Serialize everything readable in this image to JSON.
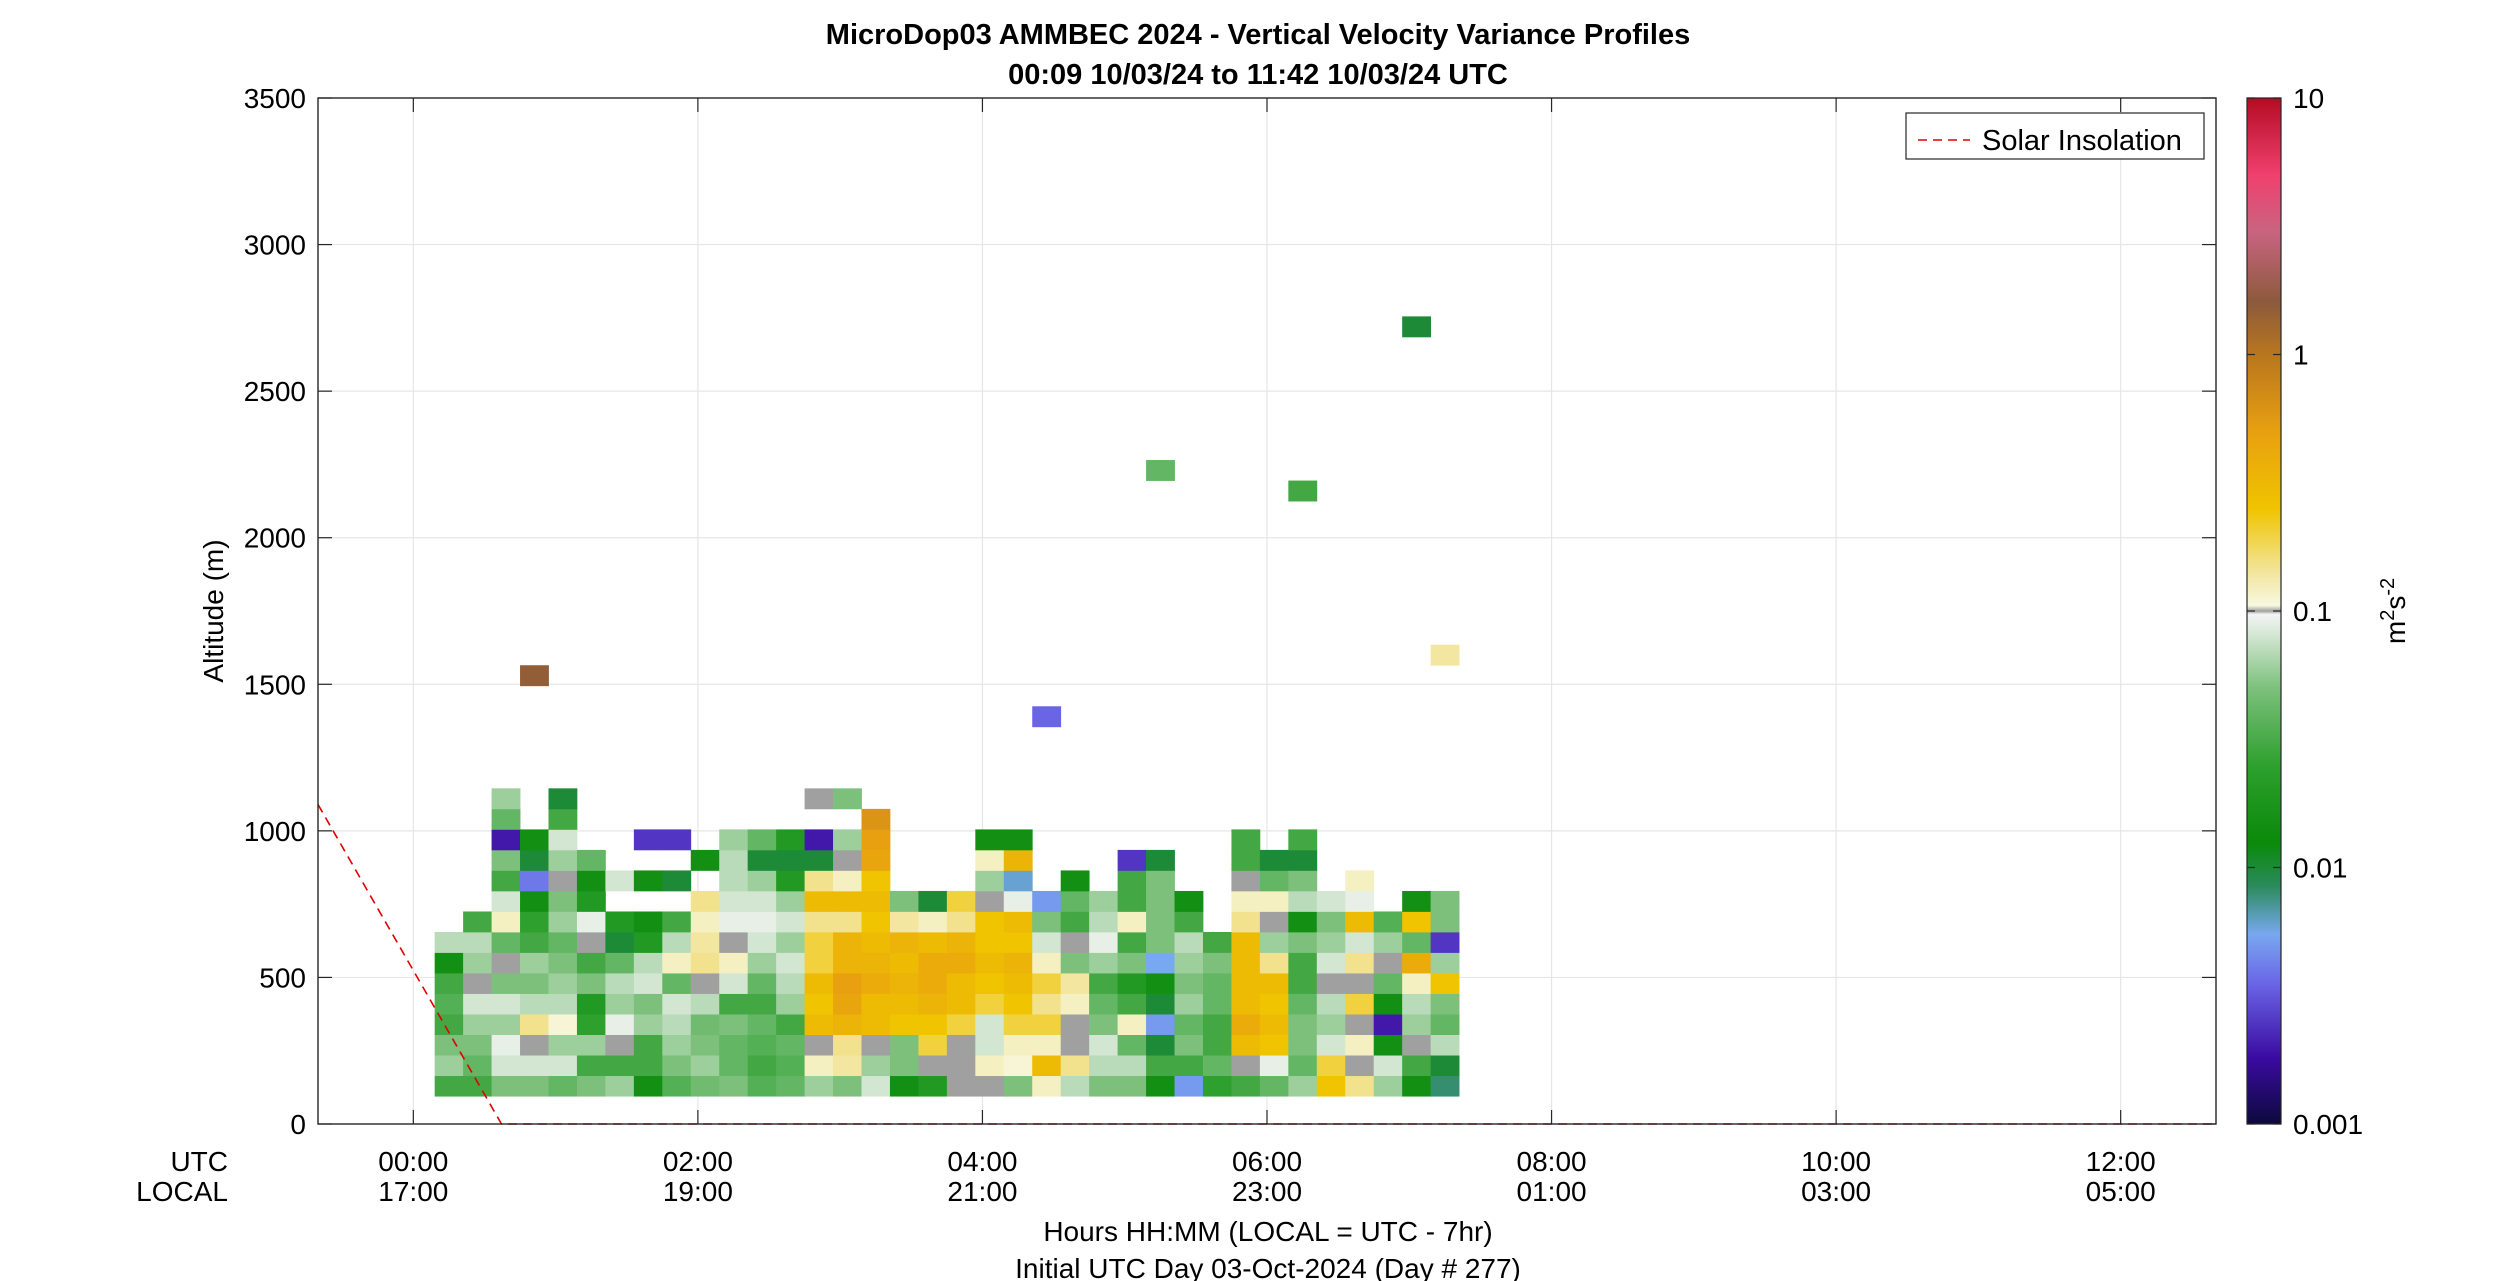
{
  "chart_data": {
    "type": "heatmap",
    "title": "MicroDop03 AMMBEC 2024 - Vertical Velocity Variance Profiles",
    "subtitle": "00:09 10/03/24 to 11:42 10/03/24  UTC",
    "ylabel": "Altitude (m)",
    "xlabel": "Hours HH:MM  (LOCAL = UTC - 7hr)",
    "xlabel2": "Initial UTC Day 03-Oct-2024 (Day # 277)",
    "row_label_utc": "UTC",
    "row_label_local": "LOCAL",
    "ylim": [
      0,
      3500
    ],
    "xlim_hours": [
      -0.67,
      12.67
    ],
    "grid": true,
    "y_ticks": [
      {
        "value": 0,
        "label": "0"
      },
      {
        "value": 500,
        "label": "500"
      },
      {
        "value": 1000,
        "label": "1000"
      },
      {
        "value": 1500,
        "label": "1500"
      },
      {
        "value": 2000,
        "label": "2000"
      },
      {
        "value": 2500,
        "label": "2500"
      },
      {
        "value": 3000,
        "label": "3000"
      },
      {
        "value": 3500,
        "label": "3500"
      }
    ],
    "x_ticks": [
      {
        "hour": 0,
        "utc": "00:00",
        "local": "17:00"
      },
      {
        "hour": 2,
        "utc": "02:00",
        "local": "19:00"
      },
      {
        "hour": 4,
        "utc": "04:00",
        "local": "21:00"
      },
      {
        "hour": 6,
        "utc": "06:00",
        "local": "23:00"
      },
      {
        "hour": 8,
        "utc": "08:00",
        "local": "01:00"
      },
      {
        "hour": 10,
        "utc": "10:00",
        "local": "03:00"
      },
      {
        "hour": 12,
        "utc": "12:00",
        "local": "05:00"
      }
    ],
    "colorbar": {
      "scale": "log",
      "range": [
        0.001,
        10
      ],
      "label_base": "m",
      "label_exp1": "2",
      "label_mid": "s",
      "label_exp2": "-2",
      "ticks": [
        {
          "value": 0.001,
          "label": "0.001"
        },
        {
          "value": 0.01,
          "label": "0.01"
        },
        {
          "value": 0.1,
          "label": "0.1"
        },
        {
          "value": 1,
          "label": "1"
        },
        {
          "value": 10,
          "label": "10"
        }
      ],
      "stops": [
        {
          "v": 0.001,
          "color": "#0c0a3c"
        },
        {
          "v": 0.0018,
          "color": "#3a0aa0"
        },
        {
          "v": 0.0035,
          "color": "#6a64e6"
        },
        {
          "v": 0.0055,
          "color": "#78a8f0"
        },
        {
          "v": 0.0085,
          "color": "#2a8a5a"
        },
        {
          "v": 0.0125,
          "color": "#0a8a0a"
        },
        {
          "v": 0.025,
          "color": "#2ea02e"
        },
        {
          "v": 0.05,
          "color": "#7cc07c"
        },
        {
          "v": 0.08,
          "color": "#d2e6d2"
        },
        {
          "v": 0.097,
          "color": "#f4f4f4"
        },
        {
          "v": 0.1,
          "color": "#a0a0a0"
        },
        {
          "v": 0.105,
          "color": "#f8f8e0"
        },
        {
          "v": 0.14,
          "color": "#f2e6a0"
        },
        {
          "v": 0.25,
          "color": "#f0c400"
        },
        {
          "v": 0.5,
          "color": "#e8a010"
        },
        {
          "v": 1.0,
          "color": "#b8761e"
        },
        {
          "v": 1.6,
          "color": "#8c5a3c"
        },
        {
          "v": 3.0,
          "color": "#c86480"
        },
        {
          "v": 5.0,
          "color": "#f0406e"
        },
        {
          "v": 10,
          "color": "#b40c24"
        }
      ]
    },
    "legend": {
      "label": "Solar Insolation",
      "color": "#e00000",
      "position": "top-right"
    },
    "solar_insolation": [
      {
        "hour": -0.67,
        "alt": 1090
      },
      {
        "hour": 0.62,
        "alt": 0
      },
      {
        "hour": 12.67,
        "alt": 0
      }
    ],
    "bins": {
      "x_start": 0.15,
      "x_step": 0.2,
      "alt_start": 95,
      "alt_step": 70,
      "note_values": "m2s-2; null = no data; each column lists values from lowest altitude bin upward"
    },
    "columns": [
      [
        0.03,
        0.06,
        0.05,
        0.03,
        0.035,
        0.03,
        0.015,
        0.07
      ],
      [
        0.03,
        0.04,
        0.05,
        0.06,
        0.08,
        0.1,
        0.06,
        0.07,
        0.03
      ],
      [
        0.05,
        0.08,
        0.09,
        0.06,
        0.08,
        0.05,
        0.1,
        0.04,
        0.12,
        0.08,
        0.03,
        0.05,
        0.002,
        0.04,
        0.06
      ],
      [
        0.05,
        0.08,
        0.1,
        0.15,
        0.07,
        0.05,
        0.06,
        0.03,
        0.025,
        0.015,
        0.004,
        0.01,
        0.015,
        null,
        null,
        null,
        null,
        null,
        null,
        null,
        1.5
      ],
      [
        0.04,
        0.08,
        0.06,
        0.11,
        0.07,
        0.06,
        0.05,
        0.04,
        0.06,
        0.05,
        0.1,
        0.06,
        0.08,
        0.03,
        0.01
      ],
      [
        0.05,
        0.03,
        0.06,
        0.025,
        0.02,
        0.05,
        0.03,
        0.1,
        0.09,
        0.02,
        0.015,
        0.04
      ],
      [
        0.06,
        0.03,
        0.1,
        0.09,
        0.06,
        0.07,
        0.04,
        0.01,
        0.02,
        null,
        0.08
      ],
      [
        0.015,
        0.03,
        0.03,
        0.06,
        0.05,
        0.08,
        0.07,
        0.02,
        0.015,
        null,
        0.015,
        null,
        0.0025
      ],
      [
        0.035,
        0.05,
        0.06,
        0.07,
        0.08,
        0.04,
        0.12,
        0.07,
        0.03,
        null,
        0.01,
        null,
        0.0025
      ],
      [
        0.045,
        0.06,
        0.05,
        0.045,
        0.07,
        0.1,
        0.15,
        0.14,
        0.12,
        0.15,
        null,
        0.015
      ],
      [
        0.05,
        0.04,
        0.04,
        0.05,
        0.03,
        0.08,
        0.12,
        0.1,
        0.09,
        0.08,
        0.07,
        0.07,
        0.06
      ],
      [
        0.035,
        0.03,
        0.035,
        0.04,
        0.03,
        0.04,
        0.06,
        0.08,
        0.09,
        0.08,
        0.06,
        0.01,
        0.04
      ],
      [
        0.04,
        0.035,
        0.04,
        0.03,
        0.06,
        0.07,
        0.08,
        0.06,
        0.08,
        0.06,
        0.02,
        0.01,
        0.02
      ],
      [
        0.06,
        0.12,
        0.1,
        0.3,
        0.25,
        0.3,
        0.2,
        0.2,
        0.15,
        0.3,
        0.15,
        0.01,
        0.002,
        null,
        0.1
      ],
      [
        0.05,
        0.14,
        0.15,
        0.35,
        0.45,
        0.5,
        0.35,
        0.35,
        0.15,
        0.3,
        0.12,
        0.1,
        0.06,
        null,
        0.05
      ],
      [
        0.08,
        0.06,
        0.1,
        0.3,
        0.3,
        0.4,
        0.35,
        0.3,
        0.25,
        0.3,
        0.25,
        0.45,
        0.5,
        0.6
      ],
      [
        0.015,
        0.05,
        0.05,
        0.25,
        0.3,
        0.35,
        0.3,
        0.35,
        0.14,
        0.05
      ],
      [
        0.02,
        0.1,
        0.2,
        0.25,
        0.35,
        0.4,
        0.4,
        0.3,
        0.12,
        0.01
      ],
      [
        0.1,
        0.1,
        0.1,
        0.2,
        0.3,
        0.3,
        0.4,
        0.35,
        0.15,
        0.2
      ],
      [
        0.1,
        0.12,
        0.08,
        0.08,
        0.2,
        0.25,
        0.3,
        0.25,
        0.25,
        0.1,
        0.06,
        0.12,
        0.015
      ],
      [
        0.05,
        0.11,
        0.12,
        0.2,
        0.25,
        0.3,
        0.35,
        0.25,
        0.3,
        0.09,
        0.006,
        0.35,
        0.015
      ],
      [
        0.12,
        0.3,
        0.12,
        0.2,
        0.15,
        0.2,
        0.12,
        0.08,
        0.05,
        0.005,
        null,
        null,
        null,
        null,
        null,
        null,
        null,
        null,
        0.0035
      ],
      [
        0.07,
        0.15,
        0.1,
        0.1,
        0.12,
        0.14,
        0.05,
        0.1,
        0.03,
        0.04,
        0.015
      ],
      [
        0.05,
        0.07,
        0.08,
        0.05,
        0.04,
        0.03,
        0.06,
        0.09,
        0.07,
        0.06
      ],
      [
        0.05,
        0.07,
        0.04,
        0.12,
        0.03,
        0.02,
        0.05,
        0.03,
        0.12,
        0.03,
        0.03,
        0.0025
      ],
      [
        0.015,
        0.03,
        0.01,
        0.005,
        0.01,
        0.015,
        0.0055,
        0.05,
        0.05,
        0.05,
        0.05,
        0.01,
        null,
        null,
        null,
        null,
        null,
        null,
        null,
        null,
        null,
        null,
        null,
        null,
        null,
        null,
        null,
        null,
        null,
        null,
        0.04
      ],
      [
        0.005,
        0.03,
        0.05,
        0.04,
        0.06,
        0.05,
        0.06,
        0.07,
        0.03,
        0.015
      ],
      [
        0.025,
        0.04,
        0.03,
        0.03,
        0.04,
        0.04,
        0.05,
        0.03
      ],
      [
        0.03,
        0.1,
        0.3,
        0.4,
        0.3,
        0.3,
        0.3,
        0.3,
        0.15,
        0.12,
        0.1,
        0.03,
        0.03
      ],
      [
        0.04,
        0.09,
        0.25,
        0.3,
        0.25,
        0.3,
        0.15,
        0.06,
        0.1,
        0.12,
        0.04,
        0.01
      ],
      [
        0.06,
        0.04,
        0.05,
        0.05,
        0.04,
        0.03,
        0.03,
        0.05,
        0.015,
        0.07,
        0.05,
        0.01,
        0.03,
        null,
        null,
        null,
        null,
        null,
        null,
        null,
        null,
        null,
        null,
        null,
        null,
        null,
        null,
        null,
        null,
        0.03
      ],
      [
        0.25,
        0.2,
        0.08,
        0.06,
        0.07,
        0.1,
        0.08,
        0.06,
        0.05,
        0.08
      ],
      [
        0.15,
        0.1,
        0.12,
        0.1,
        0.2,
        0.1,
        0.15,
        0.08,
        0.3,
        0.09,
        0.12
      ],
      [
        0.06,
        0.08,
        0.015,
        0.002,
        0.015,
        0.04,
        0.1,
        0.06,
        0.035
      ],
      [
        0.015,
        0.03,
        0.1,
        0.06,
        0.07,
        0.12,
        0.4,
        0.04,
        0.25,
        0.015,
        null,
        null,
        null,
        null,
        null,
        null,
        null,
        null,
        null,
        null,
        null,
        null,
        null,
        null,
        null,
        null,
        null,
        null,
        null,
        null,
        null,
        null,
        null,
        null,
        null,
        null,
        null,
        0.01
      ],
      [
        0.008,
        0.01,
        0.07,
        0.04,
        0.05,
        0.25,
        0.06,
        0.0025,
        0.05,
        0.05,
        null,
        null,
        null,
        null,
        null,
        null,
        null,
        null,
        null,
        null,
        null,
        0.14
      ]
    ]
  }
}
